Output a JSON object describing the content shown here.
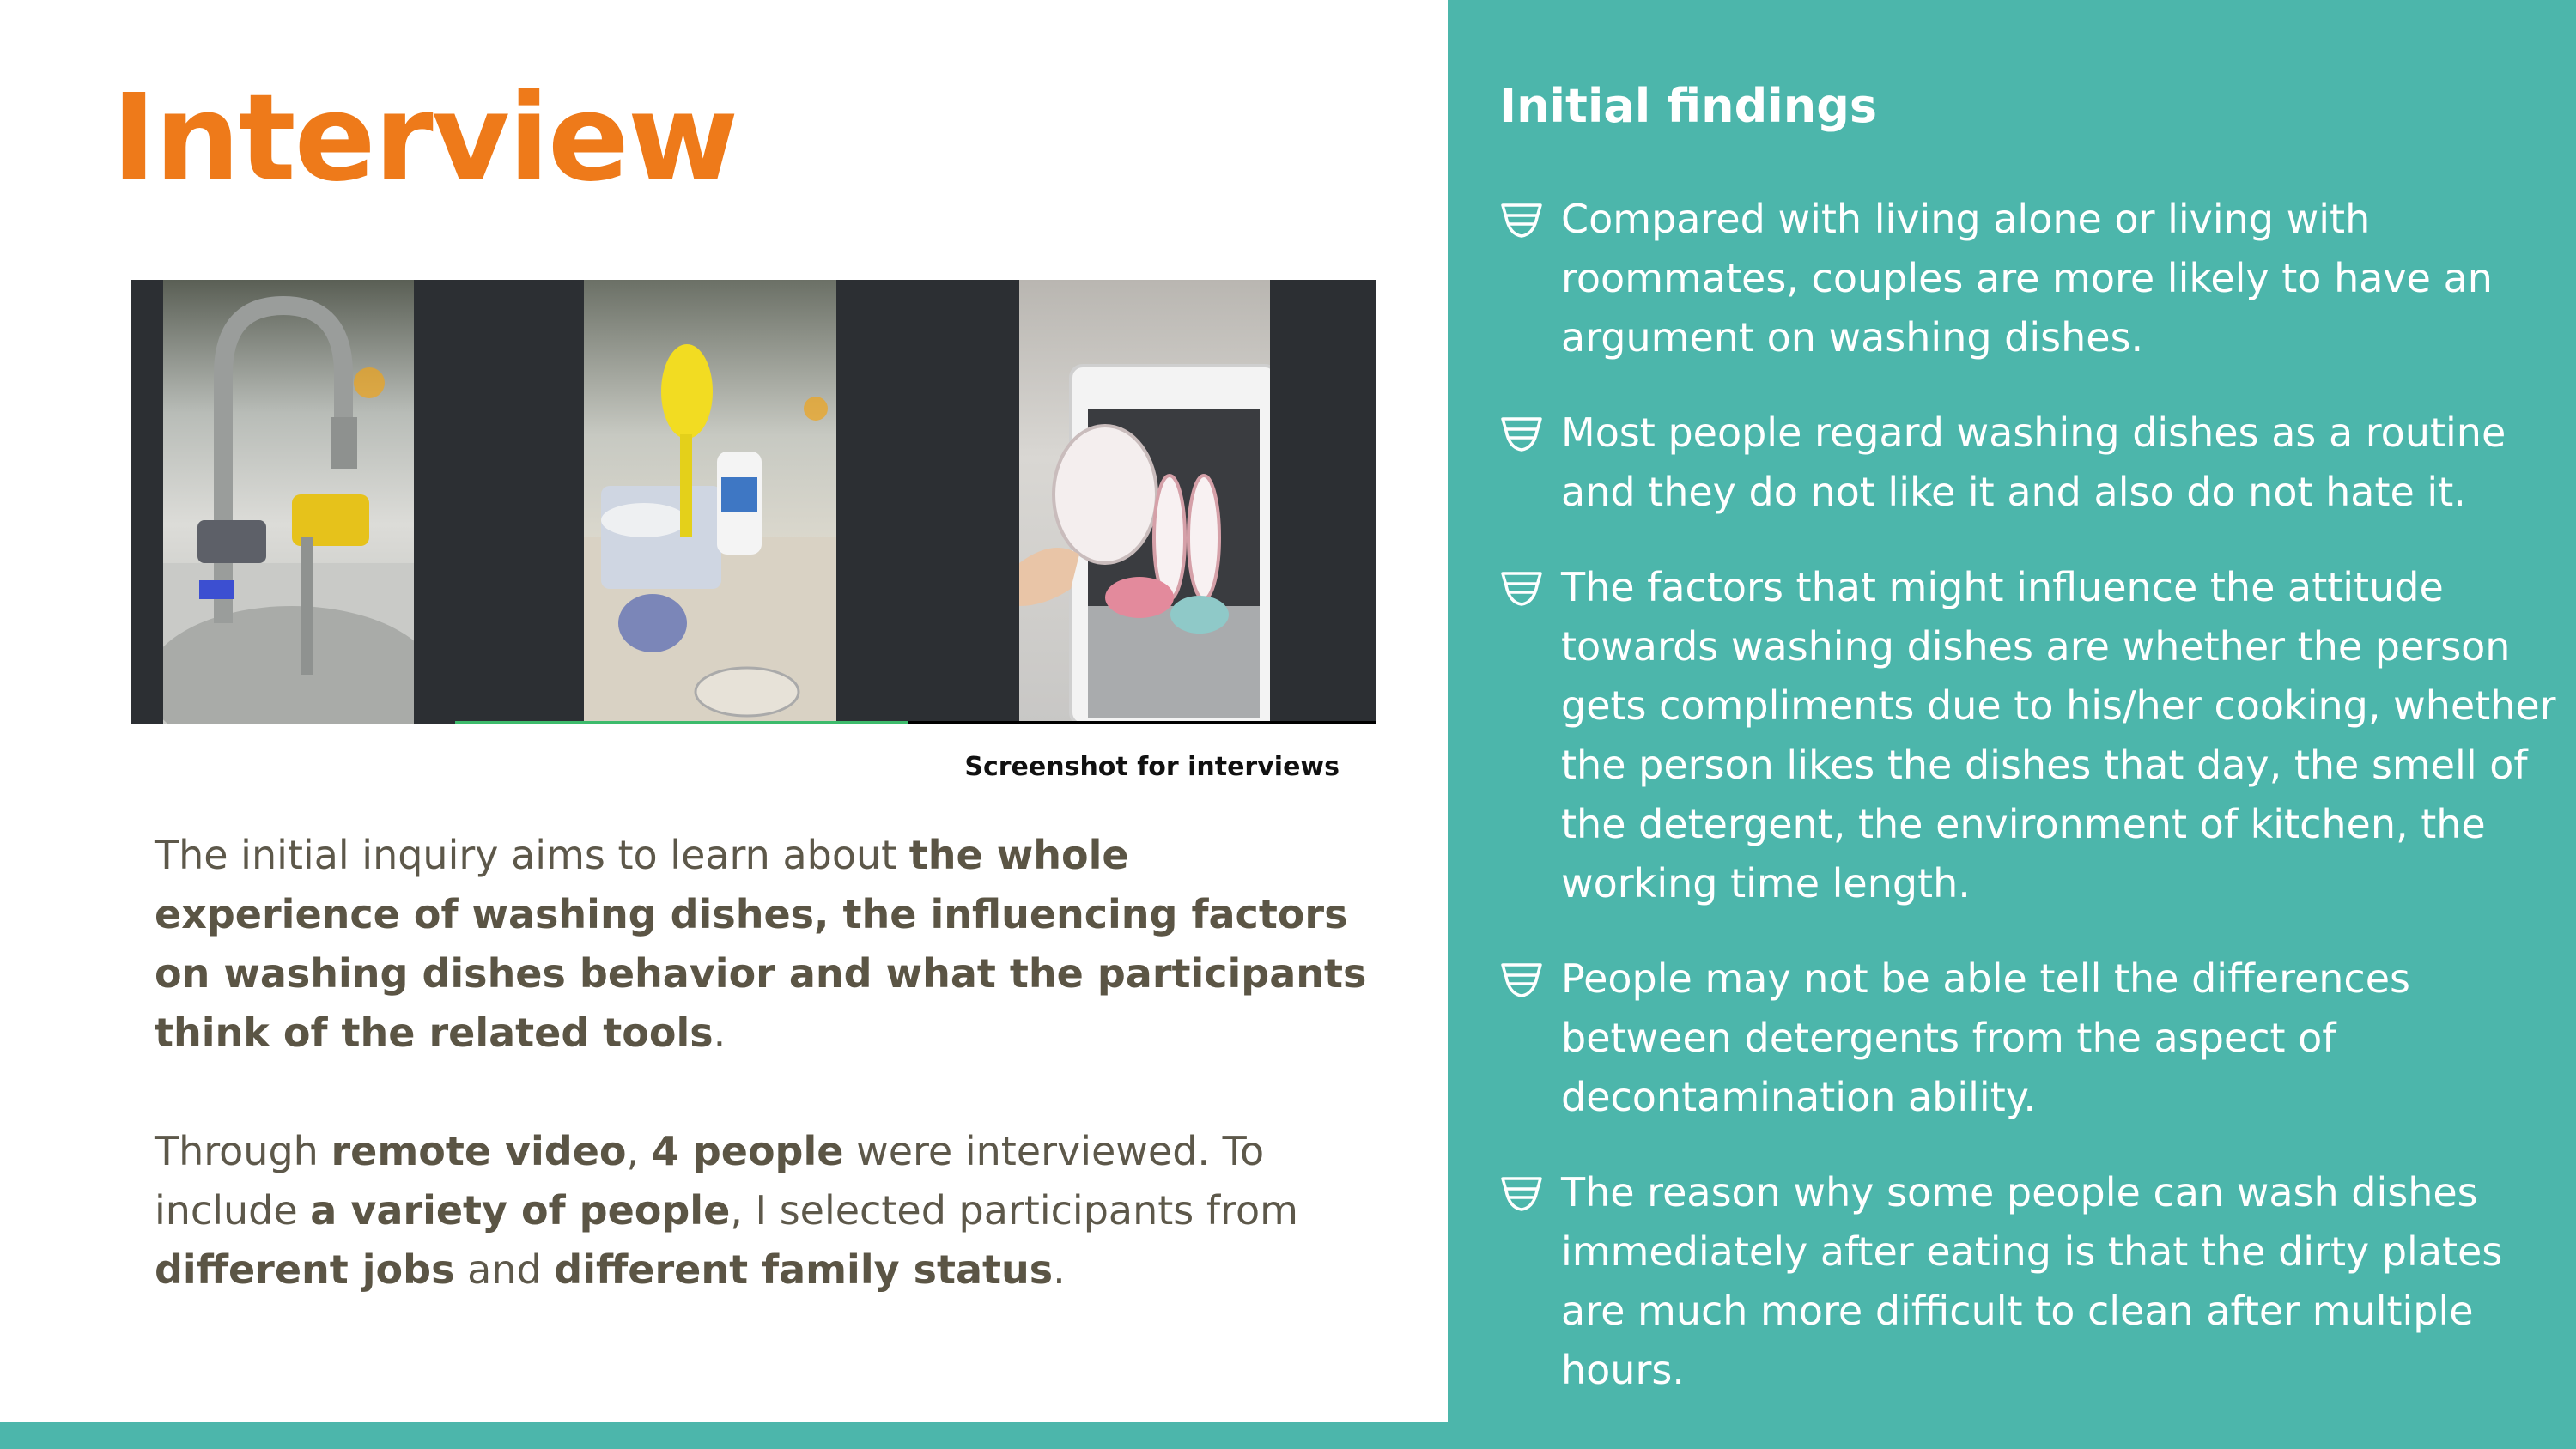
{
  "left": {
    "title": "Interview",
    "video_caption": "Screenshot for interviews",
    "paragraph_1": [
      {
        "text": "The initial inquiry aims to learn about ",
        "bold": false
      },
      {
        "text": "the whole experience of washing dishes, the influencing factors on washing dishes behavior and what the participants think of the related tools",
        "bold": true
      },
      {
        "text": ".",
        "bold": false
      }
    ],
    "paragraph_2": [
      {
        "text": "Through ",
        "bold": false
      },
      {
        "text": "remote video",
        "bold": true
      },
      {
        "text": ", ",
        "bold": false
      },
      {
        "text": "4 people",
        "bold": true
      },
      {
        "text": " were interviewed. To include ",
        "bold": false
      },
      {
        "text": "a variety of people",
        "bold": true
      },
      {
        "text": ", I selected participants from ",
        "bold": false
      },
      {
        "text": "different jobs",
        "bold": true
      },
      {
        "text": " and ",
        "bold": false
      },
      {
        "text": "different family status",
        "bold": true
      },
      {
        "text": ".",
        "bold": false
      }
    ]
  },
  "right": {
    "title": "Initial findings",
    "bullet_icon": "bowl-icon",
    "findings": [
      "Compared with living alone or living with roommates, couples are more likely to have an argument on washing dishes.",
      "Most people regard washing dishes as a routine and they do not like it and also do not hate it.",
      "The factors that might influence the attitude towards washing dishes are whether the person gets compliments due to his/her cooking, whether the person likes the dishes that day, the smell of the detergent, the environment of kitchen, the working time length.",
      "People may not be able tell the differences between detergents from the aspect of decontamination ability.",
      "The reason why some people can wash dishes immediately after eating is that the dirty plates are much more difficult to clean after multiple hours."
    ]
  },
  "colors": {
    "accent_orange": "#ee7a1a",
    "teal": "#4cb6ab",
    "body_text": "#5d584a",
    "video_bg": "#2c2f33",
    "active_video_indicator": "#3dbb6c"
  }
}
